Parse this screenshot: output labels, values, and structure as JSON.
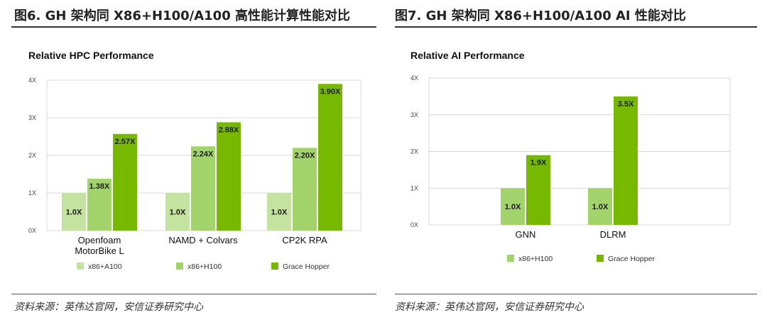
{
  "colors": {
    "series1": "#c5e3a0",
    "series2": "#a3d46c",
    "series3": "#76b900",
    "grid": "#d9d9d9",
    "plot_bg": "#ffffff"
  },
  "left": {
    "heading": "图6. GH 架构同 X86+H100/A100 高性能计算性能对比",
    "source": "资料来源：英伟达官网，安信证券研究中心"
  },
  "right": {
    "heading": "图7. GH 架构同 X86+H100/A100 AI 性能对比",
    "source": "资料来源：英伟达官网，安信证券研究中心"
  },
  "chart_data": [
    {
      "type": "bar",
      "title": "Relative HPC Performance",
      "categories": [
        [
          "Openfoam",
          "MotorBike L"
        ],
        [
          "NAMD + Colvars"
        ],
        [
          "CP2K RPA"
        ]
      ],
      "series": [
        {
          "name": "x86+A100",
          "values": [
            1.0,
            1.0,
            1.0
          ],
          "labels": [
            "1.0X",
            "1.0X",
            "1.0X"
          ]
        },
        {
          "name": "x86+H100",
          "values": [
            1.38,
            2.24,
            2.2
          ],
          "labels": [
            "1.38X",
            "2.24X",
            "2.20X"
          ]
        },
        {
          "name": "Grace Hopper",
          "values": [
            2.57,
            2.88,
            3.9
          ],
          "labels": [
            "2.57X",
            "2.88X",
            "3.90X"
          ]
        }
      ],
      "yticks": [
        "0X",
        "1X",
        "2X",
        "3X",
        "4X"
      ],
      "ylim": [
        0,
        4
      ],
      "grid": true,
      "legend": "bottom"
    },
    {
      "type": "bar",
      "title": "Relative AI Performance",
      "categories": [
        [
          "GNN"
        ],
        [
          "DLRM"
        ]
      ],
      "series": [
        {
          "name": "x86+H100",
          "values": [
            1.0,
            1.0
          ],
          "labels": [
            "1.0X",
            "1.0X"
          ]
        },
        {
          "name": "Grace Hopper",
          "values": [
            1.9,
            3.5
          ],
          "labels": [
            "1.9X",
            "3.5X"
          ]
        }
      ],
      "yticks": [
        "0X",
        "1X",
        "2X",
        "3X",
        "4X"
      ],
      "ylim": [
        0,
        4
      ],
      "grid": true,
      "legend": "bottom"
    }
  ]
}
